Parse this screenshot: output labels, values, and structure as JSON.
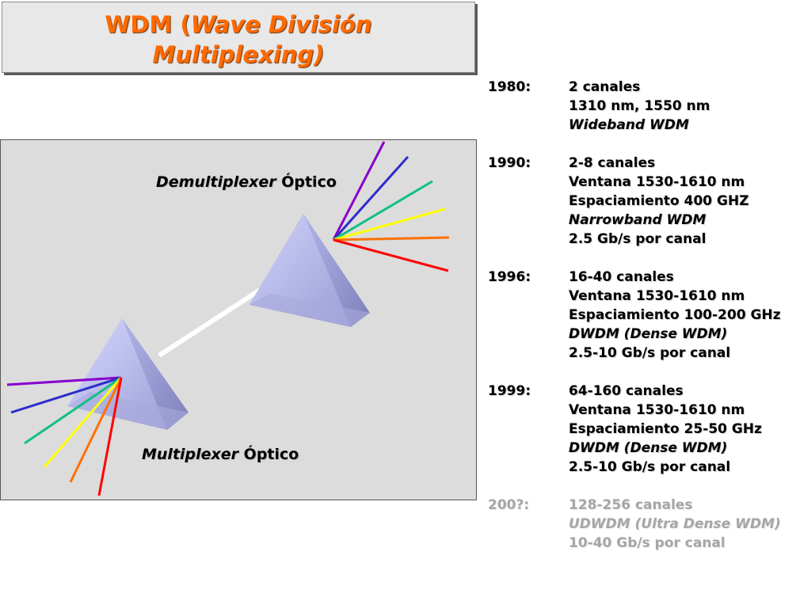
{
  "title": {
    "prefix": "WDM (",
    "italic_1": "Wave División",
    "italic_2": "Multiplexing)"
  },
  "diagram": {
    "demux_label_italic": "Demultiplexer",
    "demux_label_rest": " Óptico",
    "mux_label_italic": "Multiplexer",
    "mux_label_rest": " Óptico",
    "beam_colors": [
      "#8800cc",
      "#2c2ccc",
      "#10c080",
      "#ffff00",
      "#ff7000",
      "#ff0000"
    ]
  },
  "timeline": [
    {
      "year": "1980:",
      "lines": [
        {
          "text": "2 canales",
          "italic": false
        },
        {
          "text": "1310 nm, 1550 nm",
          "italic": false
        },
        {
          "text": "Wideband WDM",
          "italic": true
        }
      ]
    },
    {
      "year": "1990:",
      "lines": [
        {
          "text": "2-8 canales",
          "italic": false
        },
        {
          "text": "Ventana 1530-1610 nm",
          "italic": false
        },
        {
          "text": "Espaciamiento 400 GHZ",
          "italic": false
        },
        {
          "text": "Narrowband WDM",
          "italic": true
        },
        {
          "text": "2.5 Gb/s por canal",
          "italic": false
        }
      ]
    },
    {
      "year": "1996:",
      "lines": [
        {
          "text": "16-40 canales",
          "italic": false
        },
        {
          "text": "Ventana 1530-1610 nm",
          "italic": false
        },
        {
          "text": "Espaciamiento 100-200 GHz",
          "italic": false
        },
        {
          "text": "DWDM (Dense WDM)",
          "italic": true
        },
        {
          "text": "2.5-10 Gb/s por canal",
          "italic": false
        }
      ]
    },
    {
      "year": "1999:",
      "lines": [
        {
          "text": "64-160 canales",
          "italic": false
        },
        {
          "text": "Ventana 1530-1610 nm",
          "italic": false
        },
        {
          "text": "Espaciamiento 25-50 GHz",
          "italic": false
        },
        {
          "text": "DWDM (Dense WDM)",
          "italic": true
        },
        {
          "text": "2.5-10 Gb/s por canal",
          "italic": false
        }
      ]
    },
    {
      "year": "200?:",
      "future": true,
      "lines": [
        {
          "text": "128-256 canales",
          "italic": false
        },
        {
          "text": "UDWDM (Ultra Dense WDM)",
          "italic": true
        },
        {
          "text": "10-40 Gb/s por canal",
          "italic": false
        }
      ]
    }
  ]
}
